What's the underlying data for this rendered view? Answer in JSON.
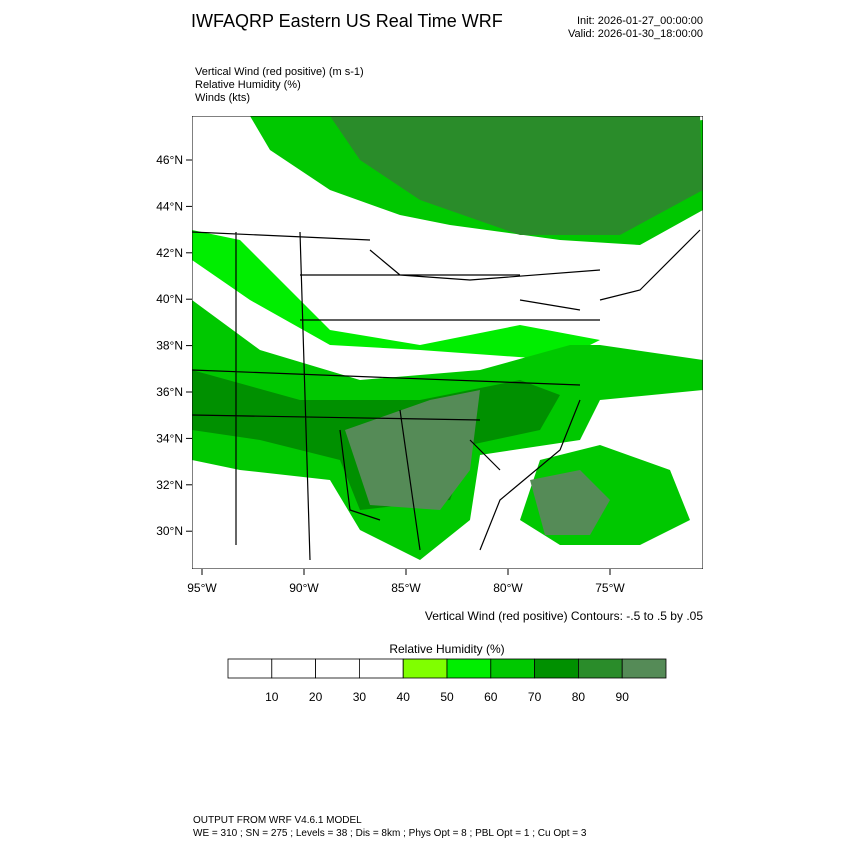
{
  "header": {
    "title": "IWFAQRP Eastern US Real Time WRF",
    "init": "Init: 2026-01-27_00:00:00",
    "valid": "Valid: 2026-01-30_18:00:00"
  },
  "fields": [
    "Vertical Wind (red positive)   (m s-1)",
    "Relative Humidity   (%)",
    "Winds   (kts)"
  ],
  "map": {
    "lat_labels": [
      "46°N",
      "44°N",
      "42°N",
      "40°N",
      "38°N",
      "36°N",
      "34°N",
      "32°N",
      "30°N"
    ],
    "lon_labels": [
      "95°W",
      "90°W",
      "85°W",
      "80°W",
      "75°W"
    ],
    "contour_note": "Vertical Wind (red positive) Contours: -.5 to .5 by .05"
  },
  "colorbar": {
    "title": "Relative Humidity  (%)",
    "labels": [
      10,
      20,
      30,
      40,
      50,
      60,
      70,
      80,
      90
    ],
    "colors": [
      "#ffffff",
      "#ffffff",
      "#ffffff",
      "#ffffff",
      "#80ff00",
      "#00ee00",
      "#00c800",
      "#009000",
      "#2a8c2a",
      "#558b57"
    ]
  },
  "footer": {
    "line1": "OUTPUT FROM WRF V4.6.1 MODEL",
    "line2": "WE = 310 ; SN = 275 ; Levels = 38 ; Dis = 8km ; Phys Opt = 8 ; PBL Opt = 1 ; Cu Opt = 3"
  }
}
